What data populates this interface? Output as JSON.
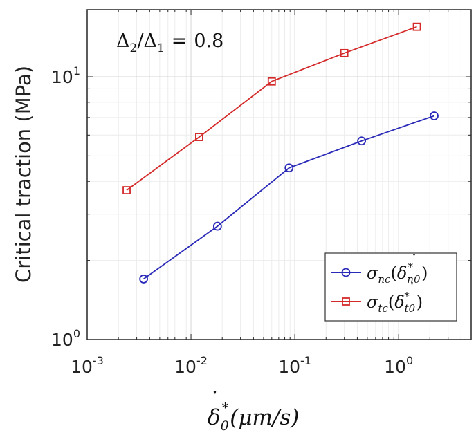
{
  "chart_data": {
    "type": "line",
    "title": "",
    "annotation": {
      "lhs_num": "Δ",
      "lhs_num_sub": "2",
      "slash": "/",
      "lhs_den": "Δ",
      "lhs_den_sub": "1",
      "equals": "=",
      "value": "0.8"
    },
    "xlabel": {
      "main": "δ",
      "dot": "˙",
      "sub": "0",
      "sup": "*",
      "units": "(μm/s)"
    },
    "ylabel": "Critical traction (MPa)",
    "xscale": "log",
    "yscale": "log",
    "xlim": [
      0.001,
      5
    ],
    "ylim": [
      1,
      18
    ],
    "grid": true,
    "legend_position": "bottom-right",
    "x_ticks": [
      {
        "value": 0.001,
        "base": "10",
        "exp": "-3"
      },
      {
        "value": 0.01,
        "base": "10",
        "exp": "-2"
      },
      {
        "value": 0.1,
        "base": "10",
        "exp": "-1"
      },
      {
        "value": 1,
        "base": "10",
        "exp": "0"
      }
    ],
    "y_ticks": [
      {
        "value": 1,
        "base": "10",
        "exp": "0"
      },
      {
        "value": 10,
        "base": "10",
        "exp": "1"
      }
    ],
    "series": [
      {
        "legend": {
          "sym": "σ",
          "sub": "nc",
          "open": "(",
          "arg": "δ",
          "arg_sub": "n0",
          "arg_sup": "*",
          "close": ")"
        },
        "color": "#2a2ab8",
        "marker": "circle",
        "x": [
          0.0035,
          0.018,
          0.088,
          0.44,
          2.2
        ],
        "y": [
          1.7,
          2.7,
          4.5,
          5.7,
          7.1
        ]
      },
      {
        "legend": {
          "sym": "σ",
          "sub": "tc",
          "open": "(",
          "arg": "δ",
          "arg_sub": "t0",
          "arg_sup": "*",
          "close": ")"
        },
        "color": "#d42a2a",
        "marker": "square",
        "x": [
          0.0024,
          0.012,
          0.06,
          0.3,
          1.5
        ],
        "y": [
          3.7,
          5.9,
          9.6,
          12.3,
          15.5
        ]
      }
    ]
  }
}
